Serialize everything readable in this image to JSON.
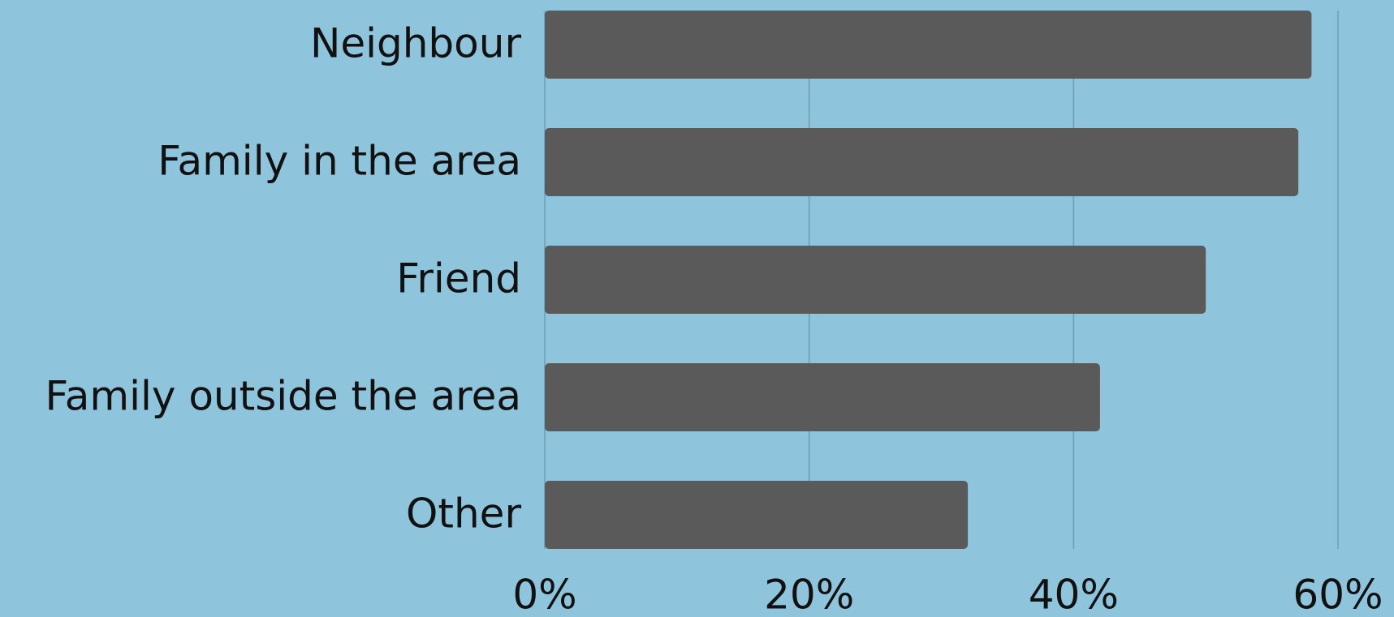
{
  "chart_data": {
    "type": "bar",
    "orientation": "horizontal",
    "categories": [
      "Neighbour",
      "Family in the area",
      "Friend",
      "Family outside the area",
      "Other"
    ],
    "values": [
      58,
      57,
      50,
      42,
      32
    ],
    "color": "#5a5a5a",
    "xlim": [
      0,
      60
    ],
    "xticks": [
      {
        "value": 0,
        "label": "0%"
      },
      {
        "value": 20,
        "label": "20%"
      },
      {
        "value": 40,
        "label": "40%"
      },
      {
        "value": 60,
        "label": "60%"
      }
    ],
    "grid": true
  }
}
